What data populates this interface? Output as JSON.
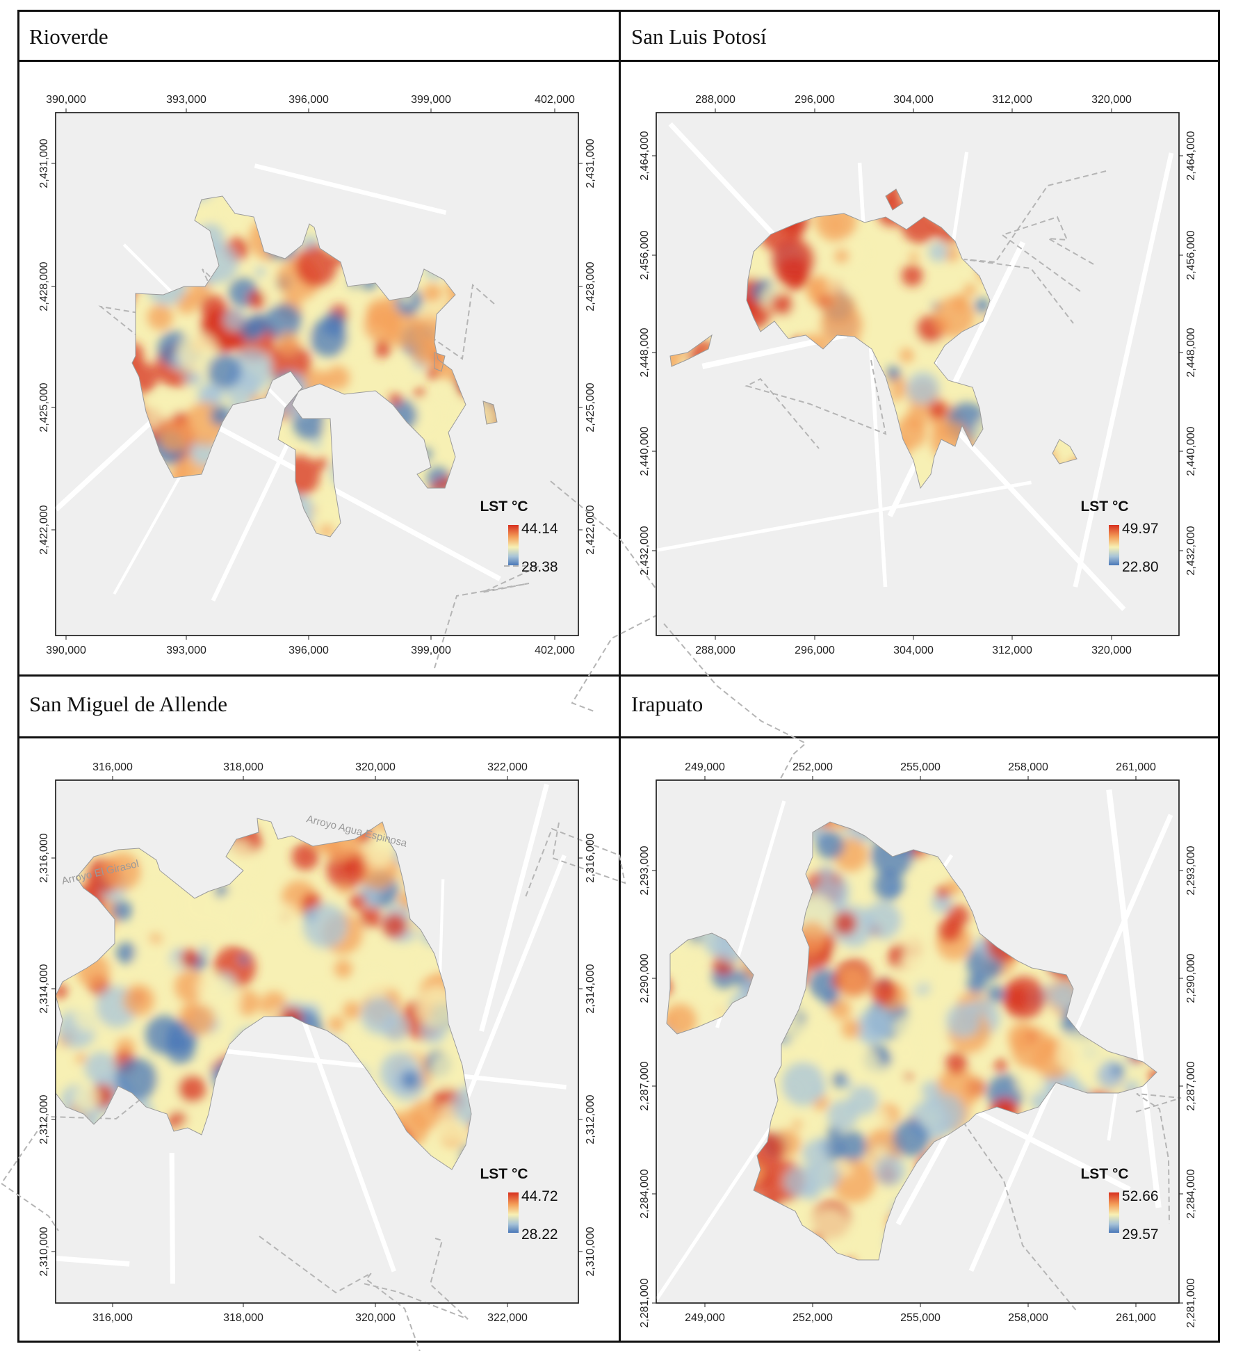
{
  "panels": [
    {
      "id": "rioverde",
      "title": "Rioverde",
      "x_ticks": [
        "390,000",
        "393,000",
        "396,000",
        "399,000",
        "402,000"
      ],
      "y_ticks": [
        "2,431,000",
        "2,428,000",
        "2,425,000",
        "2,422,000"
      ],
      "legend": {
        "title": "LST °C",
        "max": "44.14",
        "min": "28.38"
      }
    },
    {
      "id": "san-luis-potosi",
      "title": "San Luis Potosí",
      "x_ticks": [
        "288,000",
        "296,000",
        "304,000",
        "312,000",
        "320,000"
      ],
      "y_ticks": [
        "2,464,000",
        "2,456,000",
        "2,448,000",
        "2,440,000",
        "2,432,000"
      ],
      "legend": {
        "title": "LST °C",
        "max": "49.97",
        "min": "22.80"
      }
    },
    {
      "id": "san-miguel-de-allende",
      "title": "San Miguel de Allende",
      "x_ticks": [
        "316,000",
        "318,000",
        "320,000",
        "322,000"
      ],
      "y_ticks": [
        "2,316,000",
        "2,314,000",
        "2,312,000",
        "2,310,000"
      ],
      "legend": {
        "title": "LST °C",
        "max": "44.72",
        "min": "28.22"
      },
      "street_labels": [
        "Arroyo El Girasol",
        "Arroyo Agua Espinosa"
      ]
    },
    {
      "id": "irapuato",
      "title": "Irapuato",
      "x_ticks": [
        "249,000",
        "252,000",
        "255,000",
        "258,000",
        "261,000"
      ],
      "y_ticks": [
        "2,293,000",
        "2,290,000",
        "2,287,000",
        "2,284,000",
        "2,281,000"
      ],
      "legend": {
        "title": "LST °C",
        "max": "52.66",
        "min": "29.57"
      }
    }
  ],
  "colors": {
    "hot": "#d7301f",
    "warm": "#f4a05a",
    "mid": "#f7f0b4",
    "cool": "#a8c4d8",
    "cold": "#4a78b8",
    "basemap": "#efefef",
    "road": "#ffffff",
    "boundary": "#b5b5b5"
  }
}
